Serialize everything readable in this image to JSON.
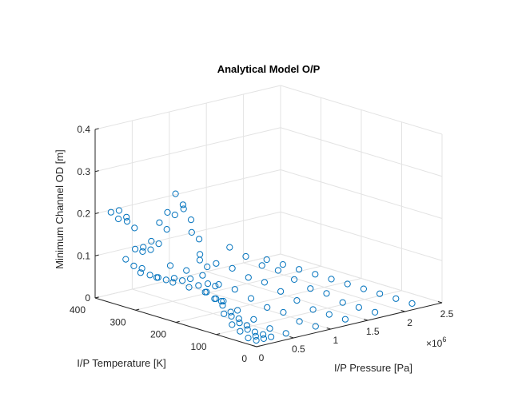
{
  "chart_data": {
    "type": "scatter3d",
    "title": "Analytical Model O/P",
    "xlabel": "I/P Pressure [Pa]",
    "ylabel": "I/P Temperature [K]",
    "zlabel": "Minimum Channel OD [m]",
    "x_multiplier": "×10",
    "x_multiplier_exp": "6",
    "xlim": [
      0,
      2500000
    ],
    "ylim": [
      0,
      400
    ],
    "zlim": [
      0,
      0.4
    ],
    "x_ticks": [
      "0",
      "0.5",
      "1",
      "1.5",
      "2",
      "2.5"
    ],
    "y_ticks": [
      "0",
      "100",
      "200",
      "300",
      "400"
    ],
    "z_ticks": [
      "0",
      "0.1",
      "0.2",
      "0.3",
      "0.4"
    ],
    "grid": true,
    "marker": "open-circle",
    "series_color": "#0072bd",
    "x_grid_values": [
      50000,
      150000,
      250000,
      350000,
      450000,
      550000,
      650000,
      750000,
      850000,
      950000,
      1050000,
      1150000,
      1250000,
      1350000,
      1450000,
      1550000,
      1650000,
      1750000,
      1850000,
      1950000,
      2050000,
      2150000
    ],
    "y_grid_values": [
      10,
      30,
      50,
      70,
      90,
      110,
      130,
      150,
      170,
      190,
      210,
      230,
      250,
      270,
      290,
      310,
      330,
      350,
      370
    ],
    "points": [
      [
        50000,
        370,
        0.21
      ],
      [
        50000,
        350,
        0.22
      ],
      [
        50000,
        330,
        0.2
      ],
      [
        50000,
        310,
        0.14
      ],
      [
        50000,
        290,
        0.15
      ],
      [
        50000,
        270,
        0.17
      ],
      [
        50000,
        250,
        0.22
      ],
      [
        50000,
        230,
        0.25
      ],
      [
        50000,
        210,
        0.3
      ],
      [
        50000,
        190,
        0.27
      ],
      [
        50000,
        170,
        0.22
      ],
      [
        50000,
        150,
        0.16
      ],
      [
        50000,
        130,
        0.11
      ],
      [
        50000,
        110,
        0.08
      ],
      [
        50000,
        90,
        0.05
      ],
      [
        50000,
        70,
        0.03
      ],
      [
        50000,
        50,
        0.02
      ],
      [
        50000,
        30,
        0.01
      ],
      [
        50000,
        10,
        0.01
      ],
      [
        150000,
        370,
        0.19
      ],
      [
        150000,
        350,
        0.2
      ],
      [
        150000,
        330,
        0.18
      ],
      [
        150000,
        310,
        0.13
      ],
      [
        150000,
        290,
        0.14
      ],
      [
        150000,
        270,
        0.16
      ],
      [
        150000,
        250,
        0.2
      ],
      [
        150000,
        230,
        0.24
      ],
      [
        150000,
        210,
        0.27
      ],
      [
        150000,
        190,
        0.24
      ],
      [
        150000,
        170,
        0.2
      ],
      [
        150000,
        150,
        0.14
      ],
      [
        150000,
        130,
        0.1
      ],
      [
        150000,
        110,
        0.07
      ],
      [
        150000,
        90,
        0.04
      ],
      [
        150000,
        70,
        0.03
      ],
      [
        150000,
        50,
        0.02
      ],
      [
        150000,
        30,
        0.01
      ],
      [
        150000,
        10,
        0.01
      ],
      [
        250000,
        370,
        0.09
      ],
      [
        250000,
        350,
        0.08
      ],
      [
        250000,
        330,
        0.08
      ],
      [
        250000,
        310,
        0.07
      ],
      [
        250000,
        290,
        0.07
      ],
      [
        250000,
        270,
        0.07
      ],
      [
        250000,
        250,
        0.08
      ],
      [
        250000,
        230,
        0.08
      ],
      [
        250000,
        210,
        0.09
      ],
      [
        250000,
        190,
        0.08
      ],
      [
        250000,
        170,
        0.07
      ],
      [
        250000,
        150,
        0.06
      ],
      [
        250000,
        130,
        0.05
      ],
      [
        250000,
        110,
        0.04
      ],
      [
        250000,
        90,
        0.03
      ],
      [
        250000,
        70,
        0.02
      ],
      [
        250000,
        50,
        0.01
      ],
      [
        250000,
        30,
        0.01
      ],
      [
        250000,
        10,
        0.01
      ],
      [
        450000,
        370,
        0.05
      ],
      [
        450000,
        330,
        0.05
      ],
      [
        450000,
        290,
        0.05
      ],
      [
        450000,
        250,
        0.05
      ],
      [
        450000,
        210,
        0.05
      ],
      [
        450000,
        170,
        0.04
      ],
      [
        450000,
        130,
        0.03
      ],
      [
        450000,
        90,
        0.02
      ],
      [
        450000,
        50,
        0.01
      ],
      [
        450000,
        10,
        0.01
      ],
      [
        850000,
        370,
        0.05
      ],
      [
        850000,
        330,
        0.05
      ],
      [
        850000,
        290,
        0.05
      ],
      [
        850000,
        250,
        0.04
      ],
      [
        850000,
        210,
        0.04
      ],
      [
        850000,
        170,
        0.03
      ],
      [
        850000,
        130,
        0.02
      ],
      [
        850000,
        90,
        0.02
      ],
      [
        850000,
        50,
        0.01
      ],
      [
        850000,
        10,
        0.01
      ],
      [
        1250000,
        370,
        0.06
      ],
      [
        1250000,
        330,
        0.05
      ],
      [
        1250000,
        290,
        0.05
      ],
      [
        1250000,
        250,
        0.04
      ],
      [
        1250000,
        210,
        0.04
      ],
      [
        1250000,
        170,
        0.03
      ],
      [
        1250000,
        130,
        0.02
      ],
      [
        1250000,
        90,
        0.01
      ],
      [
        1250000,
        50,
        0.01
      ],
      [
        1250000,
        10,
        0.01
      ],
      [
        1650000,
        370,
        0.06
      ],
      [
        1650000,
        330,
        0.05
      ],
      [
        1650000,
        290,
        0.04
      ],
      [
        1650000,
        250,
        0.04
      ],
      [
        1650000,
        210,
        0.03
      ],
      [
        1650000,
        170,
        0.02
      ],
      [
        1650000,
        130,
        0.02
      ],
      [
        1650000,
        90,
        0.01
      ],
      [
        1650000,
        50,
        0.01
      ],
      [
        1650000,
        10,
        0.01
      ],
      [
        2150000,
        370,
        0.01
      ],
      [
        2150000,
        330,
        0.01
      ],
      [
        2150000,
        290,
        0.01
      ],
      [
        2150000,
        250,
        0.01
      ],
      [
        2150000,
        210,
        0.01
      ],
      [
        2150000,
        170,
        0.01
      ],
      [
        2150000,
        130,
        0.01
      ],
      [
        2150000,
        90,
        0.01
      ],
      [
        2150000,
        50,
        0.01
      ],
      [
        2150000,
        10,
        0.01
      ]
    ]
  }
}
